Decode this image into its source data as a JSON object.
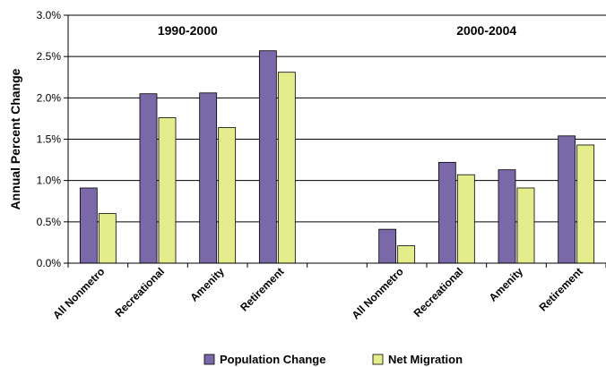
{
  "chart_data": {
    "type": "bar",
    "ylabel": "Annual Percent Change",
    "ylim": [
      0,
      3.0
    ],
    "yticks": [
      "0.0%",
      "0.5%",
      "1.0%",
      "1.5%",
      "2.0%",
      "2.5%",
      "3.0%"
    ],
    "grid": true,
    "legend_position": "bottom",
    "groups": [
      {
        "period": "1990-2000",
        "categories": [
          "All Nonmetro",
          "Recreational",
          "Amenity",
          "Retirement"
        ],
        "series": [
          {
            "name": "Population Change",
            "values": [
              0.91,
              2.05,
              2.06,
              2.57
            ]
          },
          {
            "name": "Net Migration",
            "values": [
              0.6,
              1.76,
              1.64,
              2.31
            ]
          }
        ]
      },
      {
        "period": "2000-2004",
        "categories": [
          "All Nonmetro",
          "Recreational",
          "Amenity",
          "Retirement"
        ],
        "series": [
          {
            "name": "Population Change",
            "values": [
              0.41,
              1.22,
              1.13,
              1.54
            ]
          },
          {
            "name": "Net Migration",
            "values": [
              0.21,
              1.07,
              0.91,
              1.43
            ]
          }
        ]
      }
    ],
    "series_colors": {
      "Population Change": "#7B68A8",
      "Net Migration": "#E5EC8C"
    }
  }
}
